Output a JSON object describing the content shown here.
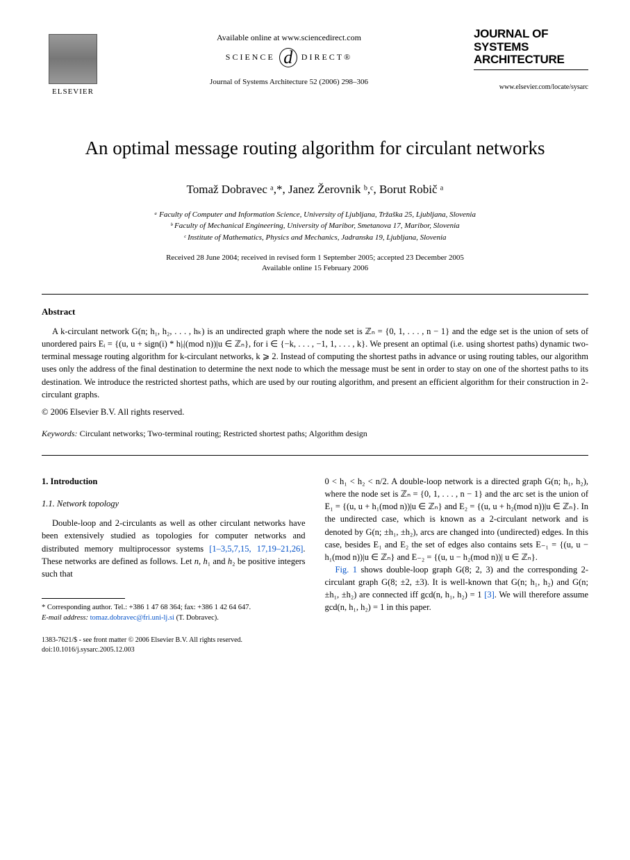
{
  "header": {
    "publisher": "ELSEVIER",
    "available_online": "Available online at www.sciencedirect.com",
    "scidirect_left": "SCIENCE",
    "scidirect_d": "d",
    "scidirect_right": "DIRECT®",
    "journal_ref": "Journal of Systems Architecture 52 (2006) 298–306",
    "journal_logo_line1": "JOURNAL OF",
    "journal_logo_line2": "SYSTEMS",
    "journal_logo_line3": "ARCHITECTURE",
    "journal_url": "www.elsevier.com/locate/sysarc"
  },
  "title": "An optimal message routing algorithm for circulant networks",
  "authors": "Tomaž Dobravec ᵃ,*, Janez Žerovnik ᵇ,ᶜ, Borut Robič ᵃ",
  "affils": {
    "a": "ᵃ Faculty of Computer and Information Science, University of Ljubljana, Tržaška 25, Ljubljana, Slovenia",
    "b": "ᵇ Faculty of Mechanical Engineering, University of Maribor, Smetanova 17, Maribor, Slovenia",
    "c": "ᶜ Institute of Mathematics, Physics and Mechanics, Jadranska 19, Ljubljana, Slovenia"
  },
  "dates": {
    "received": "Received 28 June 2004; received in revised form 1 September 2005; accepted 23 December 2005",
    "online": "Available online 15 February 2006"
  },
  "abstract": {
    "heading": "Abstract",
    "body": "A k-circulant network G(n; h₁, h₂, . . . , hₖ) is an undirected graph where the node set is ℤₙ = {0, 1, . . . , n − 1} and the edge set is the union of sets of unordered pairs Eᵢ = {(u, u + sign(i) * h|ᵢ|(mod n))|u ∈ ℤₙ}, for i ∈ {−k, . . . , −1, 1, . . . , k}. We present an optimal (i.e. using shortest paths) dynamic two-terminal message routing algorithm for k-circulant networks, k ⩾ 2. Instead of computing the shortest paths in advance or using routing tables, our algorithm uses only the address of the final destination to determine the next node to which the message must be sent in order to stay on one of the shortest paths to its destination. We introduce the restricted shortest paths, which are used by our routing algorithm, and present an efficient algorithm for their construction in 2-circulant graphs.",
    "copyright": "© 2006 Elsevier B.V. All rights reserved."
  },
  "keywords": {
    "label": "Keywords:",
    "text": " Circulant networks; Two-terminal routing; Restricted shortest paths; Algorithm design"
  },
  "body": {
    "s1": "1. Introduction",
    "s11": "1.1. Network topology",
    "left_para": "Double-loop and 2-circulants as well as other circulant networks have been extensively studied as topologies for computer networks and distributed memory multiprocessor systems [1–3,5,7,15, 17,19–21,26]. These networks are defined as follows. Let n, h₁ and h₂ be positive integers such that",
    "right_para1": "0 < h₁ < h₂ < n/2. A double-loop network is a directed graph G(n; h₁, h₂), where the node set is ℤₙ = {0, 1, . . . , n − 1} and the arc set is the union of E₁ = {(u, u + h₁(mod n))|u ∈ ℤₙ} and E₂ = {(u, u + h₂(mod n))|u ∈ ℤₙ}. In the undirected case, which is known as a 2-circulant network and is denoted by G(n; ±h₁, ±h₂), arcs are changed into (undirected) edges. In this case, besides E₁ and E₂ the set of edges also contains sets E₋₁ = {(u, u − h₁(mod n))|u ∈ ℤₙ} and E₋₂ = {(u, u − h₂(mod n))| u ∈ ℤₙ}.",
    "right_para2a": "Fig. 1",
    "right_para2b": " shows double-loop graph G(8; 2, 3) and the corresponding 2-circulant graph G(8; ±2, ±3). It is well-known that G(n; h₁, h₂) and G(n; ±h₁, ±h₂) are connected iff gcd(n, h₁, h₂) = 1 ",
    "right_para2c": "[3]",
    "right_para2d": ". We will therefore assume gcd(n, h₁, h₂) = 1 in this paper.",
    "refs_link": "[1–3,5,7,15, 17,19–21,26]"
  },
  "footnotes": {
    "corr": "* Corresponding author. Tel.: +386 1 47 68 364; fax: +386 1 42 64 647.",
    "email_label": "E-mail address: ",
    "email": "tomaz.dobravec@fri.uni-lj.si",
    "email_who": " (T. Dobravec)."
  },
  "bottom": {
    "issn": "1383-7621/$ - see front matter © 2006 Elsevier B.V. All rights reserved.",
    "doi": "doi:10.1016/j.sysarc.2005.12.003"
  }
}
